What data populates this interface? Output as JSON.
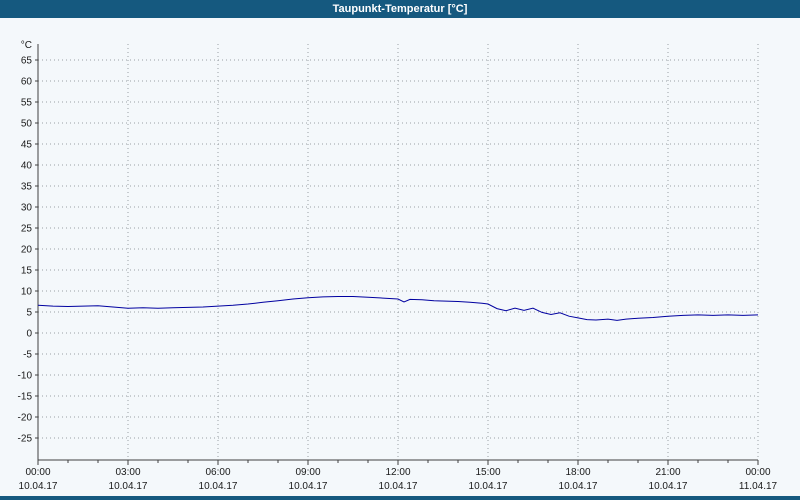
{
  "title": "Taupunkt-Temperatur [°C]",
  "colors": {
    "titlebar_bg": "#15597f",
    "titlebar_text": "#ffffff",
    "line": "#0000a0",
    "grid": "#9aa0a6",
    "axis": "#404040",
    "page_bg": "#f4f8fb"
  },
  "chart_data": {
    "type": "line",
    "title": "Taupunkt-Temperatur [°C]",
    "ylabel": "°C",
    "xlabel": "",
    "ylim": [
      -25,
      65
    ],
    "ytick_step": 5,
    "yticks": [
      65,
      60,
      55,
      50,
      45,
      40,
      35,
      30,
      25,
      20,
      15,
      10,
      5,
      0,
      -5,
      -10,
      -15,
      -20,
      -25
    ],
    "grid": "dotted",
    "legend": "none",
    "x_hours_range": [
      0,
      24
    ],
    "xticks": [
      {
        "time": "00:00",
        "date": "10.04.17"
      },
      {
        "time": "03:00",
        "date": "10.04.17"
      },
      {
        "time": "06:00",
        "date": "10.04.17"
      },
      {
        "time": "09:00",
        "date": "10.04.17"
      },
      {
        "time": "12:00",
        "date": "10.04.17"
      },
      {
        "time": "15:00",
        "date": "10.04.17"
      },
      {
        "time": "18:00",
        "date": "10.04.17"
      },
      {
        "time": "21:00",
        "date": "10.04.17"
      },
      {
        "time": "00:00",
        "date": "11.04.17"
      }
    ],
    "series": [
      {
        "name": "Taupunkt-Temperatur",
        "color": "#0000a0",
        "points": [
          [
            0,
            6.6
          ],
          [
            0.5,
            6.4
          ],
          [
            1,
            6.3
          ],
          [
            1.5,
            6.4
          ],
          [
            2,
            6.5
          ],
          [
            2.5,
            6.2
          ],
          [
            3,
            5.9
          ],
          [
            3.5,
            6.0
          ],
          [
            4,
            5.9
          ],
          [
            4.5,
            6.0
          ],
          [
            5,
            6.1
          ],
          [
            5.5,
            6.2
          ],
          [
            6,
            6.4
          ],
          [
            6.5,
            6.6
          ],
          [
            7,
            6.9
          ],
          [
            7.5,
            7.3
          ],
          [
            8,
            7.7
          ],
          [
            8.5,
            8.1
          ],
          [
            9,
            8.4
          ],
          [
            9.5,
            8.6
          ],
          [
            10,
            8.7
          ],
          [
            10.5,
            8.7
          ],
          [
            11,
            8.5
          ],
          [
            11.5,
            8.3
          ],
          [
            12,
            8.1
          ],
          [
            12.2,
            7.4
          ],
          [
            12.4,
            8.0
          ],
          [
            12.8,
            7.9
          ],
          [
            13.2,
            7.7
          ],
          [
            13.6,
            7.6
          ],
          [
            14,
            7.5
          ],
          [
            14.4,
            7.3
          ],
          [
            14.8,
            7.1
          ],
          [
            15,
            6.9
          ],
          [
            15.3,
            5.8
          ],
          [
            15.6,
            5.3
          ],
          [
            15.9,
            5.9
          ],
          [
            16.2,
            5.4
          ],
          [
            16.5,
            5.9
          ],
          [
            16.8,
            4.9
          ],
          [
            17.1,
            4.4
          ],
          [
            17.4,
            4.8
          ],
          [
            17.7,
            4.0
          ],
          [
            18,
            3.6
          ],
          [
            18.3,
            3.2
          ],
          [
            18.6,
            3.1
          ],
          [
            19,
            3.3
          ],
          [
            19.3,
            3.0
          ],
          [
            19.6,
            3.3
          ],
          [
            20,
            3.5
          ],
          [
            20.5,
            3.7
          ],
          [
            21,
            4.0
          ],
          [
            21.5,
            4.2
          ],
          [
            22,
            4.3
          ],
          [
            22.5,
            4.2
          ],
          [
            23,
            4.3
          ],
          [
            23.5,
            4.2
          ],
          [
            24,
            4.3
          ]
        ]
      }
    ]
  }
}
